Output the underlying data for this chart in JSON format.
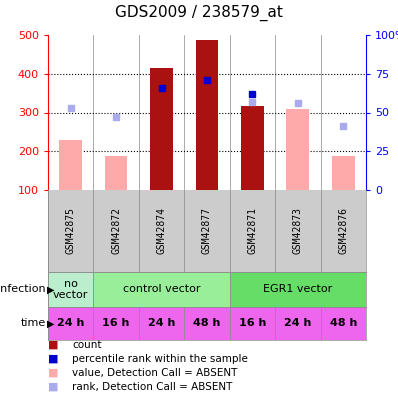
{
  "title": "GDS2009 / 238579_at",
  "samples": [
    "GSM42875",
    "GSM42872",
    "GSM42874",
    "GSM42877",
    "GSM42871",
    "GSM42873",
    "GSM42876"
  ],
  "count_values": [
    null,
    null,
    415,
    488,
    318,
    null,
    null
  ],
  "count_absent": [
    230,
    187,
    null,
    null,
    null,
    308,
    187
  ],
  "rank_present_pct": [
    null,
    null,
    66,
    71,
    62,
    null,
    null
  ],
  "rank_absent_pct": [
    53,
    47,
    null,
    null,
    57,
    56,
    41
  ],
  "ylim": [
    100,
    500
  ],
  "yticks_left": [
    100,
    200,
    300,
    400,
    500
  ],
  "yticks_right": [
    0,
    25,
    50,
    75,
    100
  ],
  "infection_groups": [
    {
      "label": "no\nvector",
      "start": 0,
      "end": 1,
      "color": "#bbeecc"
    },
    {
      "label": "control vector",
      "start": 1,
      "end": 4,
      "color": "#99ee99"
    },
    {
      "label": "EGR1 vector",
      "start": 4,
      "end": 7,
      "color": "#66dd66"
    }
  ],
  "time_labels": [
    "24 h",
    "16 h",
    "24 h",
    "48 h",
    "16 h",
    "24 h",
    "48 h"
  ],
  "time_color": "#ee66ee",
  "count_color": "#aa1111",
  "count_absent_color": "#ffaaaa",
  "rank_present_color": "#0000cc",
  "rank_absent_color": "#aaaaee",
  "bar_width": 0.5,
  "title_fontsize": 11,
  "tick_fontsize": 8,
  "sample_fontsize": 7,
  "legend_fontsize": 7.5,
  "dot_size": 5
}
